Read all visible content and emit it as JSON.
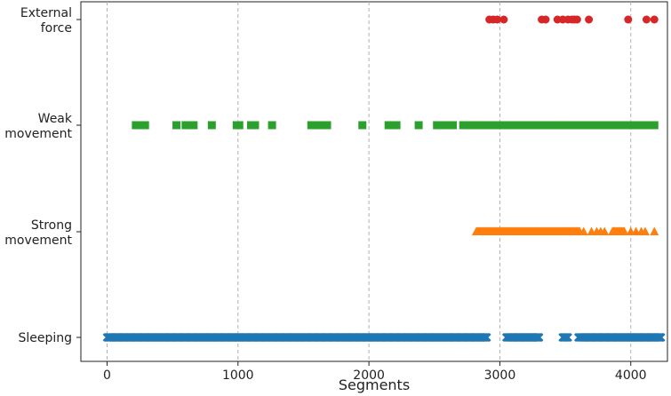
{
  "chart_data": {
    "type": "scatter",
    "title": "",
    "xlabel": "Segments",
    "ylabel": "",
    "xlim": [
      -200,
      4280
    ],
    "x_ticks": [
      0,
      1000,
      2000,
      3000,
      4000
    ],
    "y_categories": [
      "Sleeping",
      "Strong\nmovement",
      "Weak\nmovement",
      "External\nforce"
    ],
    "grid": "vertical dashed",
    "series": [
      {
        "category": "Sleeping",
        "marker": "x",
        "color": "#1f77b4",
        "x_ranges": [
          [
            0,
            2900
          ],
          [
            3050,
            3300
          ],
          [
            3480,
            3520
          ],
          [
            3600,
            4230
          ]
        ],
        "x": []
      },
      {
        "category": "Strong\nmovement",
        "marker": "triangle",
        "color": "#ff7f0e",
        "x_ranges": [
          [
            2820,
            3610
          ],
          [
            3860,
            3950
          ]
        ],
        "x": [
          3640,
          3700,
          3740,
          3770,
          3800,
          4000,
          4040,
          4080,
          4110,
          4180
        ]
      },
      {
        "category": "Weak\nmovement",
        "marker": "square",
        "color": "#2ca02c",
        "x_ranges": [
          [
            220,
            290
          ],
          [
            600,
            660
          ],
          [
            1560,
            1680
          ],
          [
            2150,
            2210
          ],
          [
            2520,
            2640
          ],
          [
            2720,
            4180
          ]
        ],
        "x": [
          530,
          800,
          990,
          1010,
          1100,
          1130,
          1260,
          1950,
          2380
        ]
      },
      {
        "category": "External\nforce",
        "marker": "circle",
        "color": "#d62728",
        "x_ranges": [],
        "x": [
          2920,
          2950,
          2980,
          3030,
          3320,
          3350,
          3440,
          3480,
          3520,
          3550,
          3570,
          3590,
          3680,
          3980,
          4120,
          4180
        ]
      }
    ]
  }
}
